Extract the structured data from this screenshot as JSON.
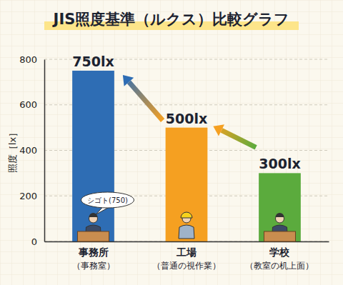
{
  "chart_data": {
    "type": "bar",
    "title": "JIS照度基準（ルクス）比較グラフ",
    "y_label": "照度［lx］",
    "categories": [
      "事務所",
      "工場",
      "学校"
    ],
    "subcategories": [
      "（事務室）",
      "（普通の視作業）",
      "（教室の机上面）"
    ],
    "values": [
      750,
      500,
      300
    ],
    "value_labels": [
      "750lx",
      "500lx",
      "300lx"
    ],
    "colors": [
      "#2e6db4",
      "#f5a021",
      "#5bab3d"
    ],
    "annotation": "シゴト(750)",
    "ylim": [
      0,
      800
    ],
    "yticks": [
      0,
      200,
      400,
      600,
      800
    ],
    "grid": true,
    "data_labels": true
  }
}
